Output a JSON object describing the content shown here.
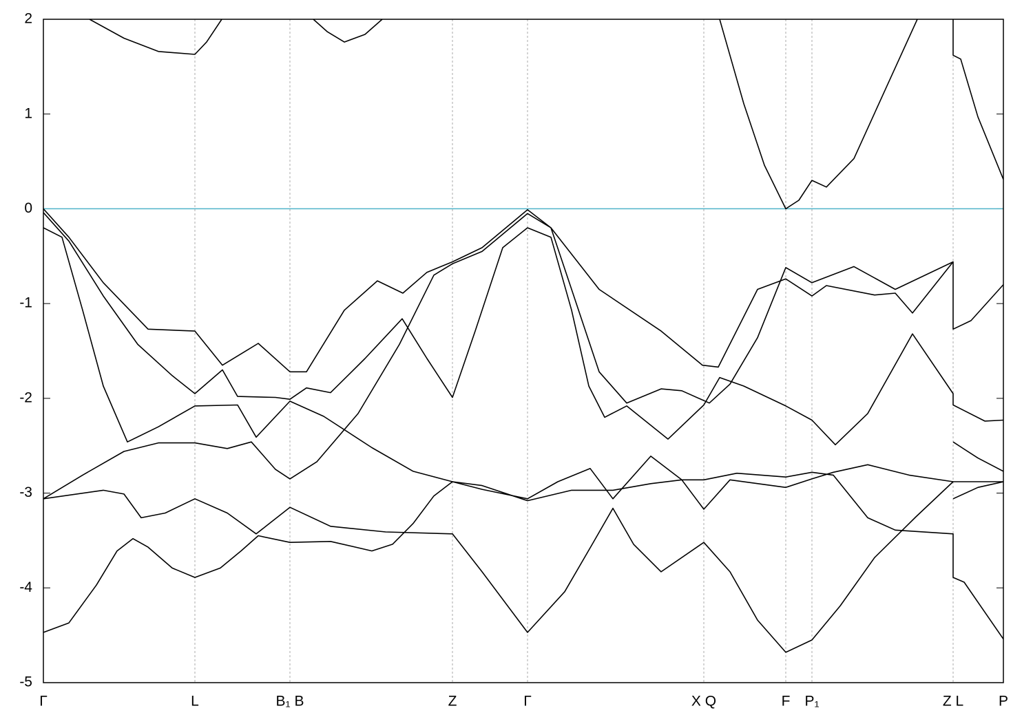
{
  "chart_data": {
    "type": "line",
    "xlim": [
      0,
      13.94
    ],
    "ylim": [
      -5,
      2
    ],
    "yticks": [
      -5,
      -4,
      -3,
      -2,
      -1,
      0,
      1,
      2
    ],
    "xticks": [
      {
        "value": 0,
        "label": "Γ"
      },
      {
        "value": 2.2,
        "label": "L"
      },
      {
        "value": 3.58,
        "label": "B₁ B"
      },
      {
        "value": 5.94,
        "label": "Z"
      },
      {
        "value": 7.03,
        "label": "Γ"
      },
      {
        "value": 9.59,
        "label": "X Q"
      },
      {
        "value": 10.78,
        "label": "F"
      },
      {
        "value": 11.16,
        "label": "P₁"
      },
      {
        "value": 13.21,
        "label": "Z L"
      },
      {
        "value": 13.94,
        "label": "P"
      }
    ],
    "grid": "x",
    "reference_line": {
      "y": 0,
      "color": "#4fb3c9"
    },
    "series": [
      {
        "color": "#000000",
        "x": [
          0,
          0.37,
          0.77,
          1.07,
          1.3,
          1.52,
          1.87,
          2.2,
          2.57,
          2.87,
          3.12,
          3.58,
          4.17,
          4.77,
          5.07,
          5.37,
          5.67,
          5.94,
          6.37,
          7.03,
          7.67,
          8.27,
          8.82,
          9.27,
          9.59,
          10.07,
          10.78,
          11.16,
          11.47,
          11.97,
          12.37,
          13.21,
          13.21,
          13.37,
          13.94
        ],
        "values": [
          -4.47,
          -4.37,
          -3.97,
          -3.61,
          -3.48,
          -3.57,
          -3.79,
          -3.89,
          -3.79,
          -3.61,
          -3.45,
          -3.52,
          -3.51,
          -3.61,
          -3.54,
          -3.32,
          -3.03,
          -2.88,
          -2.92,
          -3.08,
          -2.97,
          -2.97,
          -2.9,
          -2.86,
          -2.86,
          -2.79,
          -2.83,
          -2.78,
          -2.81,
          -3.26,
          -3.39,
          -3.43,
          -3.89,
          -3.94,
          -4.54
        ]
      },
      {
        "color": "#000000",
        "x": [
          0,
          0.87,
          1.17,
          1.42,
          1.77,
          2.2,
          2.67,
          3.09,
          3.58,
          4.17,
          4.97,
          5.94,
          6.37,
          7.03,
          7.57,
          7.97,
          8.27,
          8.57,
          8.97,
          9.59,
          9.97,
          10.37,
          10.78,
          11.16,
          11.57,
          12.07,
          12.67,
          13.21,
          13.57,
          13.94
        ],
        "values": [
          -3.06,
          -2.97,
          -3.01,
          -3.26,
          -3.21,
          -3.06,
          -3.21,
          -3.43,
          -3.15,
          -3.35,
          -3.41,
          -3.43,
          -3.83,
          -4.47,
          -4.04,
          -3.54,
          -3.16,
          -3.54,
          -3.83,
          -3.52,
          -3.83,
          -4.34,
          -4.68,
          -4.55,
          -4.19,
          -3.68,
          -3.25,
          -2.88,
          -2.88,
          -2.88
        ]
      },
      {
        "color": "#000000",
        "x": [
          0,
          0.57,
          1.17,
          1.67,
          2.2,
          2.67,
          3.02,
          3.37,
          3.58,
          3.97,
          4.57,
          5.17,
          5.67,
          5.94,
          6.37,
          7.03,
          7.37,
          7.67,
          8.07,
          8.47,
          8.97,
          9.27,
          9.67,
          9.97,
          10.37,
          10.78,
          11.16,
          11.77,
          12.37,
          13.21,
          13.21,
          13.47,
          13.94
        ],
        "values": [
          -3.06,
          -2.81,
          -2.56,
          -2.47,
          -2.47,
          -2.53,
          -2.46,
          -2.75,
          -2.85,
          -2.67,
          -2.16,
          -1.43,
          -0.7,
          -0.58,
          -0.45,
          -0.05,
          -0.2,
          -0.85,
          -1.72,
          -2.05,
          -1.9,
          -1.92,
          -2.05,
          -1.85,
          -1.36,
          -0.62,
          -0.78,
          -0.61,
          -0.85,
          -0.56,
          -1.27,
          -1.18,
          -0.8
        ]
      },
      {
        "color": "#000000",
        "x": [
          0,
          0.27,
          0.57,
          0.87,
          1.22,
          1.67,
          2.2,
          2.82,
          3.09,
          3.58,
          4.07,
          4.77,
          5.37,
          5.94,
          6.37,
          7.03,
          7.47,
          7.94,
          8.27,
          8.82,
          9.27,
          9.59,
          9.97,
          10.78,
          11.16,
          11.47,
          11.97,
          12.57,
          13.21
        ],
        "values": [
          -0.2,
          -0.3,
          -1.07,
          -1.87,
          -2.46,
          -2.3,
          -2.08,
          -2.07,
          -2.41,
          -2.03,
          -2.19,
          -2.52,
          -2.77,
          -2.88,
          -2.96,
          -3.06,
          -2.88,
          -2.74,
          -3.06,
          -2.61,
          -2.86,
          -3.17,
          -2.86,
          -2.94,
          -2.85,
          -2.78,
          -2.7,
          -2.81,
          -2.88
        ]
      },
      {
        "color": "#000000",
        "x": [
          13.21,
          13.57,
          13.94
        ],
        "values": [
          -2.46,
          -2.63,
          -2.77
        ]
      },
      {
        "color": "#000000",
        "x": [
          13.21,
          13.57,
          13.94
        ],
        "values": [
          -3.06,
          -2.94,
          -2.88
        ]
      },
      {
        "color": "#000000",
        "x": [
          0,
          0.37,
          0.87,
          1.37,
          1.87,
          2.2,
          2.6,
          2.82,
          3.37,
          3.58,
          3.82,
          4.17,
          4.67,
          5.21,
          5.57,
          5.94,
          6.27,
          6.67,
          7.03,
          7.37,
          7.67,
          7.92,
          8.15,
          8.47,
          9.07,
          9.59,
          9.82,
          10.17,
          10.78,
          11.16,
          11.5,
          11.97,
          12.62,
          13.21,
          13.21,
          13.67,
          13.94
        ],
        "values": [
          -0.04,
          -0.34,
          -0.92,
          -1.43,
          -1.76,
          -1.95,
          -1.7,
          -1.98,
          -1.99,
          -2.01,
          -1.89,
          -1.94,
          -1.58,
          -1.16,
          -1.58,
          -1.99,
          -1.29,
          -0.41,
          -0.2,
          -0.3,
          -1.07,
          -1.87,
          -2.2,
          -2.08,
          -2.43,
          -2.07,
          -1.78,
          -1.87,
          -2.08,
          -2.23,
          -2.49,
          -2.16,
          -1.32,
          -1.95,
          -2.07,
          -2.24,
          -2.23
        ]
      },
      {
        "color": "#000000",
        "x": [
          0,
          0.37,
          0.87,
          1.52,
          2.2,
          2.6,
          3.12,
          3.58,
          3.82,
          4.37,
          4.85,
          5.22,
          5.57,
          5.94,
          6.37,
          7.03,
          7.37,
          8.07,
          8.97,
          9.57,
          9.8,
          10.37,
          10.78,
          11.16,
          11.37,
          12.07,
          12.37,
          12.62,
          13.21
        ],
        "values": [
          0,
          -0.3,
          -0.78,
          -1.27,
          -1.29,
          -1.65,
          -1.42,
          -1.72,
          -1.72,
          -1.07,
          -0.76,
          -0.89,
          -0.67,
          -0.56,
          -0.41,
          -0.01,
          -0.2,
          -0.85,
          -1.29,
          -1.65,
          -1.67,
          -0.85,
          -0.74,
          -0.92,
          -0.81,
          -0.91,
          -0.89,
          -1.1,
          -0.56
        ]
      },
      {
        "color": "#000000",
        "x": [
          0.67,
          1.17,
          1.67,
          2.2,
          2.37,
          2.59
        ],
        "values": [
          2,
          1.8,
          1.66,
          1.63,
          1.76,
          2
        ]
      },
      {
        "color": "#000000",
        "x": [
          3.92,
          4.12,
          4.37,
          4.67,
          4.92
        ],
        "values": [
          2,
          1.87,
          1.76,
          1.84,
          2
        ]
      },
      {
        "color": "#000000",
        "x": [
          9.82,
          10.17,
          10.47,
          10.78,
          10.97,
          11.16,
          11.37,
          11.77,
          12.27,
          12.69
        ],
        "values": [
          2,
          1.11,
          0.46,
          0,
          0.09,
          0.3,
          0.23,
          0.53,
          1.33,
          2
        ]
      },
      {
        "color": "#000000",
        "x": [
          13.21,
          13.21,
          13.32,
          13.57,
          13.94
        ],
        "values": [
          2,
          1.62,
          1.58,
          0.97,
          0.31
        ]
      }
    ]
  }
}
